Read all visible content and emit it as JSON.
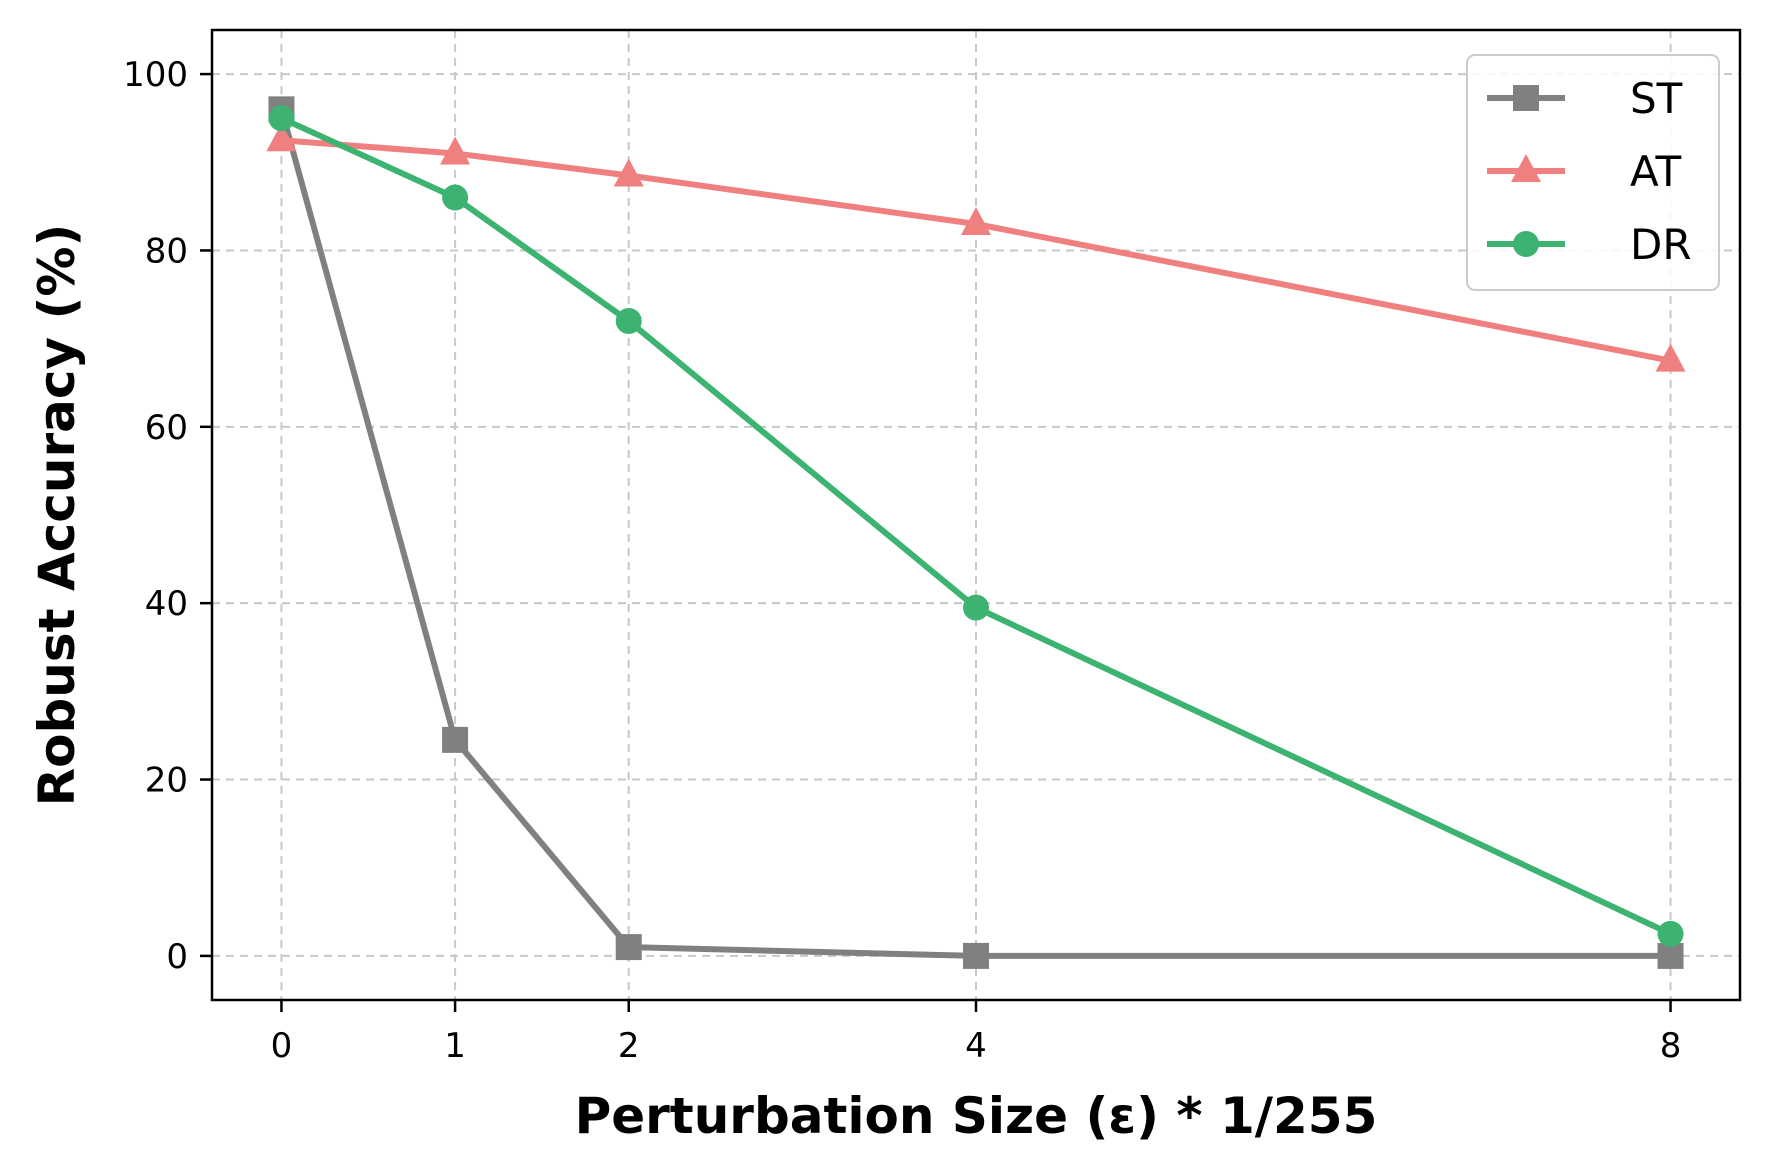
{
  "chart_data": {
    "type": "line",
    "title": "",
    "xlabel": "Perturbation Size (ε) * 1/255",
    "ylabel": "Robust Accuracy (%)",
    "x": [
      0,
      1,
      2,
      4,
      8
    ],
    "x_ticks": [
      0,
      1,
      2,
      4,
      8
    ],
    "y_ticks": [
      0,
      20,
      40,
      60,
      80,
      100
    ],
    "xlim": [
      -0.4,
      8.4
    ],
    "ylim": [
      -5,
      105
    ],
    "grid": true,
    "legend_position": "top-right",
    "series": [
      {
        "name": "ST",
        "values": [
          96,
          24.5,
          1,
          0,
          0
        ],
        "color": "#808080",
        "marker": "square"
      },
      {
        "name": "AT",
        "values": [
          92.5,
          91,
          88.5,
          83,
          67.5
        ],
        "color": "#f08080",
        "marker": "triangle"
      },
      {
        "name": "DR",
        "values": [
          95,
          86,
          72,
          39.5,
          2.5
        ],
        "color": "#3cb371",
        "marker": "circle"
      }
    ]
  }
}
